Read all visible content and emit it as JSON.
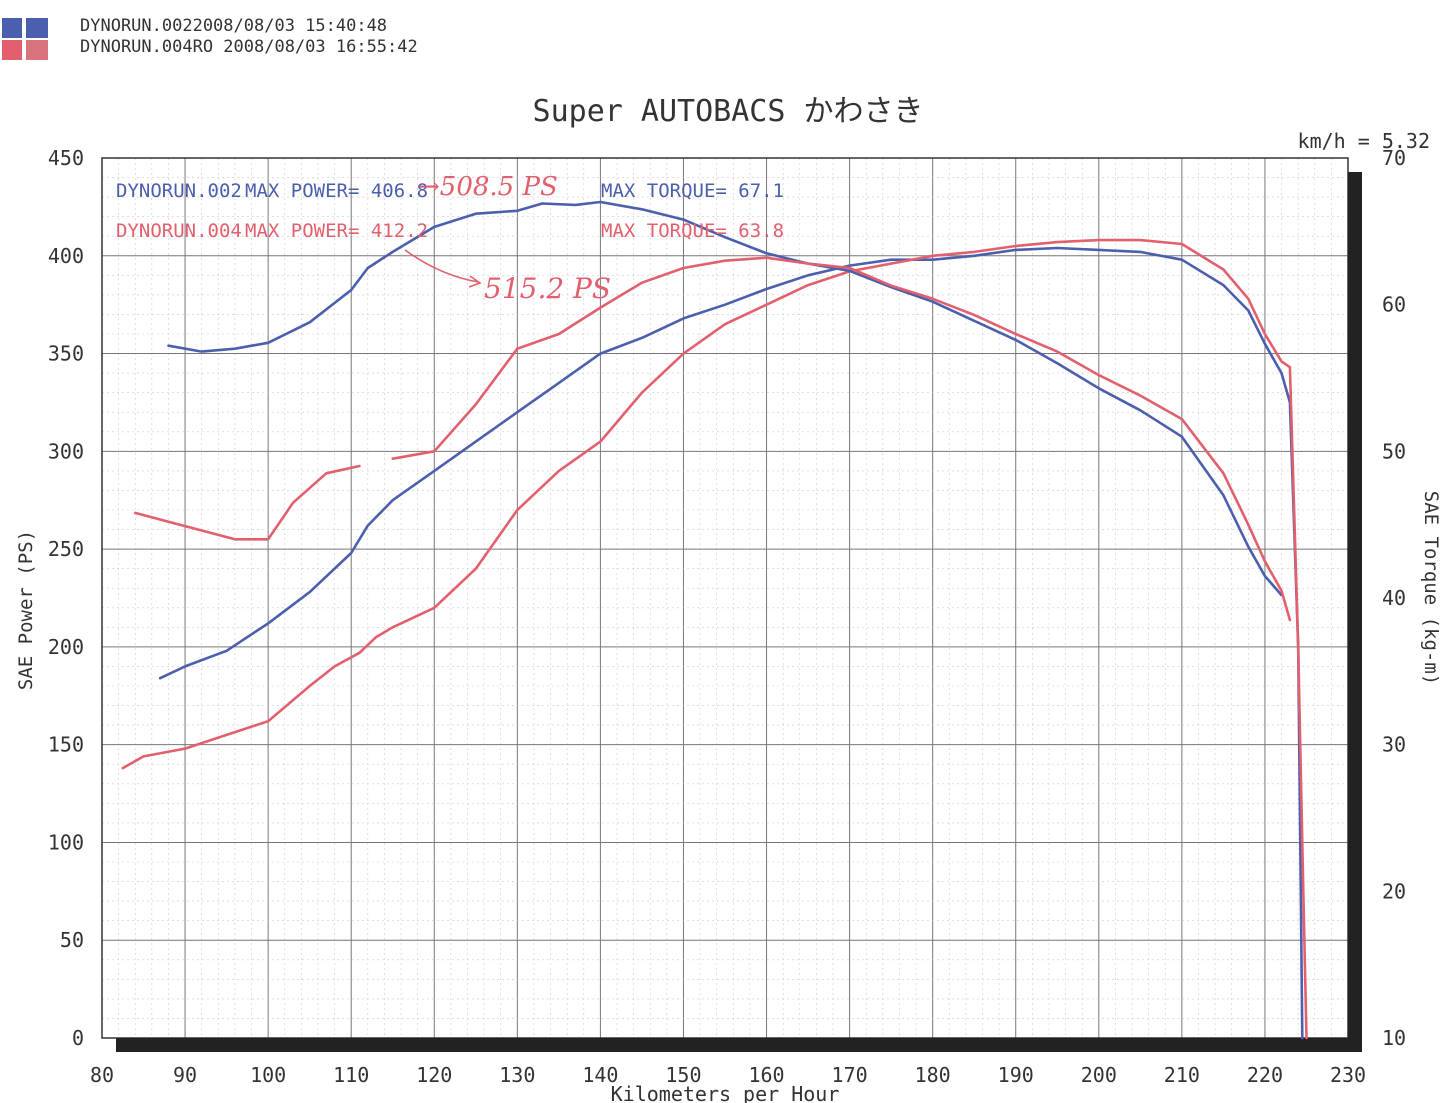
{
  "header": {
    "runs": [
      {
        "text": "DYNORUN.0022008/08/03 15:40:48",
        "color": "#4b5fae"
      },
      {
        "text": "DYNORUN.004RO  2008/08/03 16:55:42",
        "color": "#e2606e"
      }
    ]
  },
  "chart_data": {
    "type": "line",
    "title": "Super AUTOBACS かわさき",
    "xlabel": "Kilometers per Hour",
    "ylabel_left": "SAE Power (PS)",
    "ylabel_right": "SAE Torque (kg-m)",
    "corner_label": "km/h = 5.32",
    "xlim": [
      80,
      230
    ],
    "ylim_left": [
      0,
      450
    ],
    "ylim_right": [
      10,
      70
    ],
    "x_ticks": [
      80,
      90,
      100,
      110,
      120,
      130,
      140,
      150,
      160,
      170,
      180,
      190,
      200,
      210,
      220,
      230
    ],
    "y_ticks_left": [
      0,
      50,
      100,
      150,
      200,
      250,
      300,
      350,
      400,
      450
    ],
    "y_ticks_right": [
      10,
      20,
      30,
      40,
      50,
      60,
      70
    ],
    "grid": true,
    "legend": [
      {
        "run": "DYNORUN.002",
        "power": "MAX POWER= 406.8",
        "torque": "MAX TORQUE= 67.1",
        "color": "#4b5fae"
      },
      {
        "run": "DYNORUN.004",
        "power": "MAX POWER= 412.2",
        "torque": "MAX TORQUE= 63.8",
        "color": "#e2606e"
      }
    ],
    "annotations": [
      "→508.5 PS",
      "515.2 PS"
    ],
    "series": [
      {
        "name": "DYNORUN.002 power",
        "axis": "left",
        "color": "#4b5fae",
        "points": [
          [
            87,
            184
          ],
          [
            90,
            190
          ],
          [
            95,
            198
          ],
          [
            100,
            212
          ],
          [
            105,
            228
          ],
          [
            110,
            248
          ],
          [
            112,
            262
          ],
          [
            115,
            275
          ],
          [
            120,
            290
          ],
          [
            125,
            305
          ],
          [
            130,
            320
          ],
          [
            135,
            335
          ],
          [
            140,
            350
          ],
          [
            145,
            358
          ],
          [
            150,
            368
          ],
          [
            155,
            375
          ],
          [
            160,
            383
          ],
          [
            165,
            390
          ],
          [
            170,
            395
          ],
          [
            175,
            398
          ],
          [
            180,
            398
          ],
          [
            185,
            400
          ],
          [
            190,
            403
          ],
          [
            195,
            404
          ],
          [
            200,
            403
          ],
          [
            205,
            402
          ],
          [
            210,
            398
          ],
          [
            215,
            385
          ],
          [
            218,
            372
          ],
          [
            220,
            355
          ],
          [
            222,
            340
          ],
          [
            223,
            325
          ],
          [
            224,
            200
          ],
          [
            224.3,
            80
          ],
          [
            224.5,
            0
          ]
        ]
      },
      {
        "name": "DYNORUN.004 power",
        "axis": "left",
        "color": "#e2606e",
        "points": [
          [
            82.5,
            138
          ],
          [
            85,
            144
          ],
          [
            90,
            148
          ],
          [
            95,
            155
          ],
          [
            100,
            162
          ],
          [
            105,
            180
          ],
          [
            108,
            190
          ],
          [
            111,
            197
          ],
          [
            113,
            205
          ],
          [
            115,
            210
          ],
          [
            120,
            220
          ],
          [
            125,
            240
          ],
          [
            130,
            270
          ],
          [
            135,
            290
          ],
          [
            140,
            305
          ],
          [
            145,
            330
          ],
          [
            150,
            350
          ],
          [
            155,
            365
          ],
          [
            160,
            375
          ],
          [
            165,
            385
          ],
          [
            170,
            392
          ],
          [
            175,
            396
          ],
          [
            180,
            400
          ],
          [
            185,
            402
          ],
          [
            190,
            405
          ],
          [
            195,
            407
          ],
          [
            200,
            408
          ],
          [
            205,
            408
          ],
          [
            210,
            406
          ],
          [
            215,
            393
          ],
          [
            218,
            378
          ],
          [
            220,
            360
          ],
          [
            222,
            346
          ],
          [
            223,
            343
          ],
          [
            224,
            200
          ],
          [
            224.6,
            80
          ],
          [
            225,
            0
          ]
        ]
      },
      {
        "name": "DYNORUN.002 torque",
        "axis": "right",
        "color": "#4b5fae",
        "points": [
          [
            88,
            57.2
          ],
          [
            92,
            56.8
          ],
          [
            96,
            57.0
          ],
          [
            100,
            57.4
          ],
          [
            105,
            58.8
          ],
          [
            110,
            61.0
          ],
          [
            112,
            62.5
          ],
          [
            115,
            63.6
          ],
          [
            120,
            65.3
          ],
          [
            125,
            66.2
          ],
          [
            130,
            66.4
          ],
          [
            133,
            66.9
          ],
          [
            137,
            66.8
          ],
          [
            140,
            67.0
          ],
          [
            145,
            66.5
          ],
          [
            150,
            65.8
          ],
          [
            155,
            64.6
          ],
          [
            160,
            63.5
          ],
          [
            165,
            62.8
          ],
          [
            170,
            62.3
          ],
          [
            175,
            61.2
          ],
          [
            180,
            60.2
          ],
          [
            185,
            58.9
          ],
          [
            190,
            57.6
          ],
          [
            195,
            56.0
          ],
          [
            200,
            54.3
          ],
          [
            205,
            52.8
          ],
          [
            210,
            51.0
          ],
          [
            215,
            47.0
          ],
          [
            218,
            43.5
          ],
          [
            220,
            41.5
          ],
          [
            222,
            40.2
          ]
        ]
      },
      {
        "name": "DYNORUN.004 torque",
        "axis": "right",
        "color": "#e2606e",
        "points": [
          [
            84,
            45.8
          ],
          [
            88,
            45.2
          ],
          [
            92,
            44.6
          ],
          [
            96,
            44.0
          ],
          [
            100,
            44.0
          ],
          [
            103,
            46.5
          ],
          [
            107,
            48.5
          ],
          [
            111,
            49.0
          ]
        ]
      },
      {
        "name": "DYNORUN.004 torque",
        "axis": "right",
        "color": "#e2606e",
        "points": [
          [
            115,
            49.5
          ],
          [
            120,
            50.0
          ],
          [
            125,
            53.2
          ],
          [
            130,
            57.0
          ],
          [
            135,
            58.0
          ],
          [
            140,
            59.8
          ],
          [
            145,
            61.5
          ],
          [
            150,
            62.5
          ],
          [
            155,
            63.0
          ],
          [
            160,
            63.2
          ],
          [
            165,
            62.8
          ],
          [
            170,
            62.5
          ],
          [
            175,
            61.3
          ],
          [
            180,
            60.4
          ],
          [
            185,
            59.3
          ],
          [
            190,
            58.0
          ],
          [
            195,
            56.8
          ],
          [
            200,
            55.2
          ],
          [
            205,
            53.8
          ],
          [
            210,
            52.2
          ],
          [
            215,
            48.5
          ],
          [
            218,
            45.0
          ],
          [
            220,
            42.5
          ],
          [
            222,
            40.5
          ],
          [
            223,
            38.5
          ]
        ]
      }
    ]
  }
}
